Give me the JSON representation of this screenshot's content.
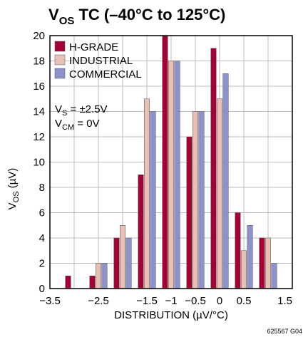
{
  "chart_data": {
    "type": "bar",
    "title_main": "V",
    "title_sub": "OS",
    "title_rest": " TC (–40°C to 125°C)",
    "ylabel_main": "V",
    "ylabel_sub": "OS",
    "ylabel_rest": " (µV)",
    "xlabel": "DISTRIBUTION (µV/°C)",
    "xlim": [
      -3.5,
      1.5
    ],
    "ylim": [
      0,
      20
    ],
    "x_ticks": [
      "−3.5",
      "−2.5",
      "−1.5",
      "−1",
      "−0.5",
      "0",
      "0.5",
      "1.5"
    ],
    "x_tick_values": [
      -3.5,
      -2.5,
      -1.5,
      -1.0,
      -0.5,
      0,
      0.5,
      1.5
    ],
    "y_ticks": [
      "0",
      "2",
      "4",
      "6",
      "8",
      "10",
      "12",
      "14",
      "16",
      "18",
      "20"
    ],
    "y_tick_values": [
      0,
      2,
      4,
      6,
      8,
      10,
      12,
      14,
      16,
      18,
      20
    ],
    "bin_centers": [
      -3.0,
      -2.5,
      -2.0,
      -1.5,
      -1.0,
      -0.5,
      0.0,
      0.5,
      1.0
    ],
    "series": [
      {
        "name": "H-GRADE",
        "color": "#a50034",
        "values": [
          1,
          1,
          4,
          9,
          20,
          12,
          19,
          6,
          4
        ]
      },
      {
        "name": "INDUSTRIAL",
        "color": "#e8c0b4",
        "values": [
          0,
          2,
          5,
          15,
          18,
          14,
          15,
          3,
          4
        ]
      },
      {
        "name": "COMMERCIAL",
        "color": "#8c92cc",
        "values": [
          0,
          2,
          4,
          14,
          18,
          14,
          17,
          5,
          2
        ]
      }
    ],
    "conditions": [
      {
        "main": "V",
        "sub": "S",
        "rest": " = ±2.5V"
      },
      {
        "main": "V",
        "sub": "CM",
        "rest": " = 0V"
      }
    ],
    "figure_code": "625567 G04",
    "grid": true,
    "legend_position": "top-left"
  }
}
